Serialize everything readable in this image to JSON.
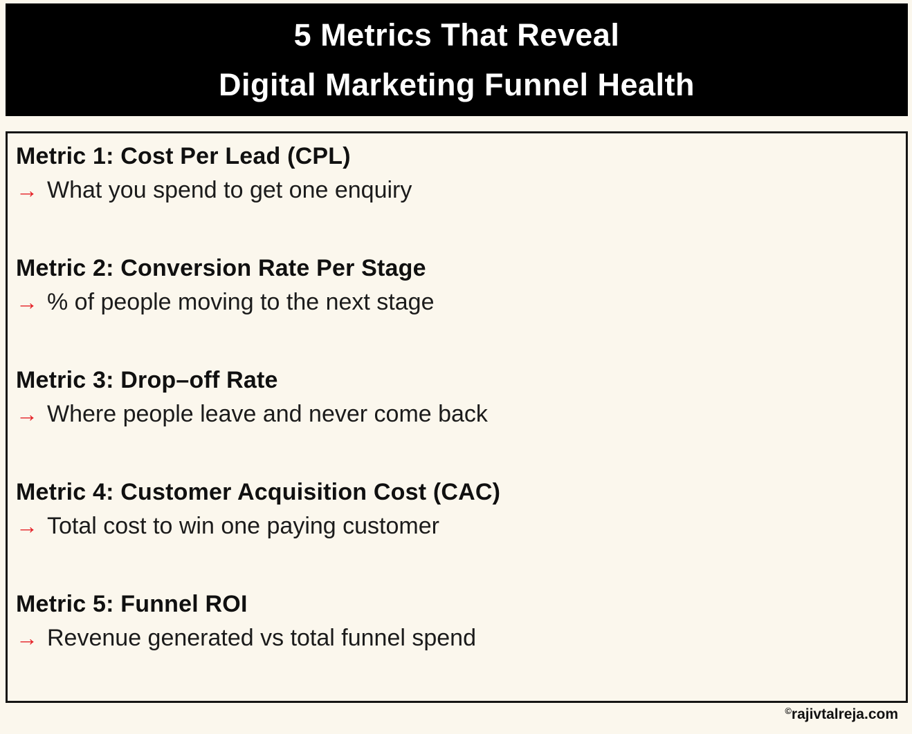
{
  "colors": {
    "background": "#FBF7ED",
    "banner_bg": "#000000",
    "banner_text": "#FFFFFF",
    "border": "#151515",
    "heading_text": "#101010",
    "body_text": "#1B1B1B",
    "arrow_red": "#E52228",
    "footer_text": "#111111"
  },
  "header": {
    "title_line1": "5 Metrics That Reveal",
    "title_line2": "Digital Marketing Funnel Health"
  },
  "icons": {
    "arrow": "→"
  },
  "metrics": [
    {
      "heading": "Metric 1: Cost Per Lead (CPL)",
      "description": "What you spend to get one enquiry"
    },
    {
      "heading": "Metric 2: Conversion Rate Per Stage",
      "description": "% of people moving to the next stage"
    },
    {
      "heading": "Metric 3: Drop–off Rate",
      "description": "Where people leave and never come back"
    },
    {
      "heading": "Metric 4: Customer Acquisition Cost (CAC)",
      "description": "Total cost to win one paying customer"
    },
    {
      "heading": "Metric 5: Funnel ROI",
      "description": "Revenue generated vs total funnel spend"
    }
  ],
  "footer": {
    "copyright_symbol": "©",
    "site": "rajivtalreja.com"
  }
}
